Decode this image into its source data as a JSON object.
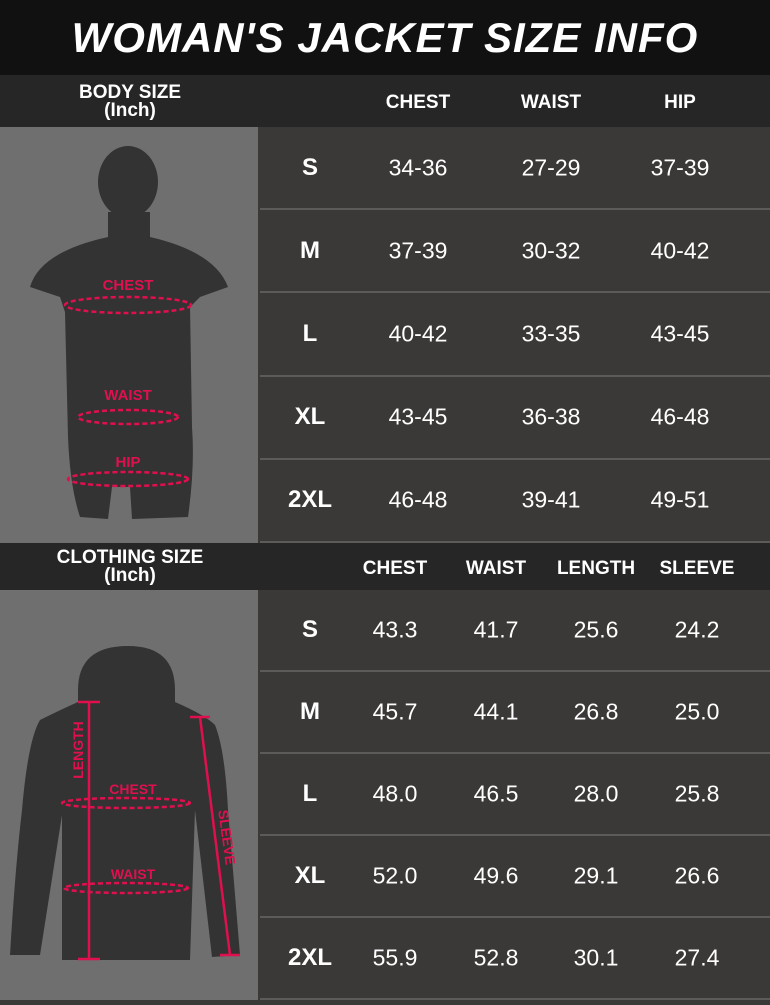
{
  "title": "WOMAN'S JACKET SIZE INFO",
  "colors": {
    "accent": "#e0104f",
    "figure": "#333333",
    "panel": "#6f6f6f"
  },
  "body_size": {
    "label": "BODY SIZE",
    "unit": "(Inch)",
    "columns": [
      "CHEST",
      "WAIST",
      "HIP"
    ],
    "figure_labels": [
      "CHEST",
      "WAIST",
      "HIP"
    ],
    "rows": [
      {
        "size": "S",
        "values": [
          "34-36",
          "27-29",
          "37-39"
        ]
      },
      {
        "size": "M",
        "values": [
          "37-39",
          "30-32",
          "40-42"
        ]
      },
      {
        "size": "L",
        "values": [
          "40-42",
          "33-35",
          "43-45"
        ]
      },
      {
        "size": "XL",
        "values": [
          "43-45",
          "36-38",
          "46-48"
        ]
      },
      {
        "size": "2XL",
        "values": [
          "46-48",
          "39-41",
          "49-51"
        ]
      }
    ]
  },
  "clothing_size": {
    "label": "CLOTHING SIZE",
    "unit": "(Inch)",
    "columns": [
      "CHEST",
      "WAIST",
      "LENGTH",
      "SLEEVE"
    ],
    "figure_labels": [
      "LENGTH",
      "CHEST",
      "WAIST",
      "SLEEVE"
    ],
    "rows": [
      {
        "size": "S",
        "values": [
          "43.3",
          "41.7",
          "25.6",
          "24.2"
        ]
      },
      {
        "size": "M",
        "values": [
          "45.7",
          "44.1",
          "26.8",
          "25.0"
        ]
      },
      {
        "size": "L",
        "values": [
          "48.0",
          "46.5",
          "28.0",
          "25.8"
        ]
      },
      {
        "size": "XL",
        "values": [
          "52.0",
          "49.6",
          "29.1",
          "26.6"
        ]
      },
      {
        "size": "2XL",
        "values": [
          "55.9",
          "52.8",
          "30.1",
          "27.4"
        ]
      }
    ]
  }
}
